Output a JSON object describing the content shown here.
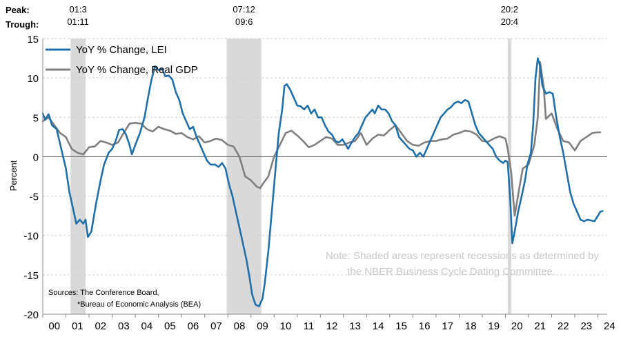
{
  "chart_data": {
    "type": "line",
    "ylabel": "Percent",
    "xlabel": "",
    "ylim": [
      -20,
      15
    ],
    "yticks": [
      15,
      10,
      5,
      0,
      -5,
      -10,
      -15,
      -20
    ],
    "xlim": [
      2000,
      2024.4
    ],
    "xtick_labels": [
      "00",
      "01",
      "02",
      "03",
      "04",
      "05",
      "06",
      "07",
      "08",
      "09",
      "10",
      "11",
      "12",
      "13",
      "14",
      "15",
      "16",
      "17",
      "18",
      "19",
      "20",
      "21",
      "22",
      "23",
      "24"
    ],
    "grid": true,
    "legend_placement": "top-left",
    "peak_label": "Peak:",
    "trough_label": "Trough:",
    "recessions": [
      {
        "peak": "01:3",
        "trough": "01:11",
        "start": 2001.2,
        "end": 2001.85
      },
      {
        "peak": "07:12",
        "trough": "09:6",
        "start": 2007.95,
        "end": 2009.45
      },
      {
        "peak": "20:2",
        "trough": "20:4",
        "start": 2020.1,
        "end": 2020.25
      }
    ],
    "series": [
      {
        "name": "YoY % Change, LEI",
        "color": "#1f6fa8",
        "points": [
          [
            2000.0,
            5.5
          ],
          [
            2000.1,
            4.7
          ],
          [
            2000.25,
            5.4
          ],
          [
            2000.4,
            4.0
          ],
          [
            2000.6,
            3.5
          ],
          [
            2000.8,
            1.0
          ],
          [
            2001.0,
            -1.5
          ],
          [
            2001.15,
            -4.5
          ],
          [
            2001.3,
            -6.5
          ],
          [
            2001.45,
            -8.5
          ],
          [
            2001.6,
            -8.0
          ],
          [
            2001.75,
            -8.5
          ],
          [
            2001.85,
            -8.0
          ],
          [
            2001.95,
            -10.2
          ],
          [
            2002.1,
            -9.5
          ],
          [
            2002.3,
            -6.0
          ],
          [
            2002.5,
            -3.0
          ],
          [
            2002.65,
            -1.0
          ],
          [
            2002.85,
            0.5
          ],
          [
            2003.0,
            1.0
          ],
          [
            2003.15,
            2.0
          ],
          [
            2003.3,
            3.4
          ],
          [
            2003.45,
            3.5
          ],
          [
            2003.6,
            2.8
          ],
          [
            2003.75,
            1.5
          ],
          [
            2003.85,
            0.3
          ],
          [
            2004.0,
            1.5
          ],
          [
            2004.2,
            3.0
          ],
          [
            2004.4,
            5.0
          ],
          [
            2004.55,
            7.5
          ],
          [
            2004.7,
            9.8
          ],
          [
            2004.85,
            11.5
          ],
          [
            2005.0,
            11.0
          ],
          [
            2005.15,
            11.2
          ],
          [
            2005.3,
            10.2
          ],
          [
            2005.45,
            10.3
          ],
          [
            2005.6,
            9.8
          ],
          [
            2005.75,
            8.2
          ],
          [
            2005.9,
            7.2
          ],
          [
            2006.05,
            5.5
          ],
          [
            2006.2,
            4.5
          ],
          [
            2006.35,
            3.5
          ],
          [
            2006.5,
            3.8
          ],
          [
            2006.65,
            2.5
          ],
          [
            2006.8,
            1.5
          ],
          [
            2006.95,
            0.5
          ],
          [
            2007.1,
            -0.5
          ],
          [
            2007.25,
            -1.0
          ],
          [
            2007.45,
            -1.0
          ],
          [
            2007.6,
            -1.3
          ],
          [
            2007.75,
            -0.8
          ],
          [
            2007.9,
            -1.5
          ],
          [
            2008.05,
            -3.5
          ],
          [
            2008.2,
            -5.0
          ],
          [
            2008.35,
            -7.0
          ],
          [
            2008.5,
            -9.0
          ],
          [
            2008.65,
            -11.0
          ],
          [
            2008.8,
            -13.0
          ],
          [
            2008.95,
            -15.5
          ],
          [
            2009.05,
            -17.5
          ],
          [
            2009.2,
            -18.8
          ],
          [
            2009.35,
            -19.0
          ],
          [
            2009.5,
            -18.0
          ],
          [
            2009.6,
            -16.0
          ],
          [
            2009.75,
            -12.0
          ],
          [
            2009.9,
            -7.0
          ],
          [
            2010.05,
            -2.0
          ],
          [
            2010.2,
            3.0
          ],
          [
            2010.35,
            6.0
          ],
          [
            2010.45,
            9.0
          ],
          [
            2010.55,
            9.2
          ],
          [
            2010.7,
            8.5
          ],
          [
            2010.85,
            7.5
          ],
          [
            2011.0,
            6.5
          ],
          [
            2011.15,
            6.4
          ],
          [
            2011.3,
            6.0
          ],
          [
            2011.45,
            6.5
          ],
          [
            2011.6,
            5.5
          ],
          [
            2011.75,
            6.0
          ],
          [
            2011.9,
            5.0
          ],
          [
            2012.05,
            5.0
          ],
          [
            2012.2,
            4.0
          ],
          [
            2012.35,
            3.2
          ],
          [
            2012.5,
            2.8
          ],
          [
            2012.65,
            2.0
          ],
          [
            2012.8,
            1.8
          ],
          [
            2012.95,
            2.2
          ],
          [
            2013.1,
            1.5
          ],
          [
            2013.2,
            1.0
          ],
          [
            2013.35,
            1.8
          ],
          [
            2013.5,
            2.5
          ],
          [
            2013.65,
            3.0
          ],
          [
            2013.8,
            4.0
          ],
          [
            2013.95,
            5.0
          ],
          [
            2014.1,
            5.5
          ],
          [
            2014.25,
            6.0
          ],
          [
            2014.35,
            5.5
          ],
          [
            2014.5,
            6.5
          ],
          [
            2014.65,
            6.0
          ],
          [
            2014.8,
            6.0
          ],
          [
            2014.95,
            5.5
          ],
          [
            2015.1,
            4.5
          ],
          [
            2015.25,
            4.0
          ],
          [
            2015.4,
            2.5
          ],
          [
            2015.55,
            2.0
          ],
          [
            2015.7,
            1.5
          ],
          [
            2015.85,
            1.0
          ],
          [
            2016.0,
            0.8
          ],
          [
            2016.15,
            0.0
          ],
          [
            2016.3,
            0.5
          ],
          [
            2016.45,
            0.0
          ],
          [
            2016.6,
            1.0
          ],
          [
            2016.75,
            2.0
          ],
          [
            2016.9,
            3.0
          ],
          [
            2017.05,
            4.0
          ],
          [
            2017.2,
            5.0
          ],
          [
            2017.35,
            5.5
          ],
          [
            2017.5,
            6.0
          ],
          [
            2017.65,
            6.3
          ],
          [
            2017.8,
            6.8
          ],
          [
            2017.95,
            7.0
          ],
          [
            2018.1,
            6.8
          ],
          [
            2018.25,
            7.2
          ],
          [
            2018.4,
            7.0
          ],
          [
            2018.55,
            5.5
          ],
          [
            2018.7,
            4.0
          ],
          [
            2018.85,
            3.0
          ],
          [
            2019.0,
            2.5
          ],
          [
            2019.15,
            2.0
          ],
          [
            2019.3,
            1.5
          ],
          [
            2019.45,
            1.0
          ],
          [
            2019.6,
            0.0
          ],
          [
            2019.75,
            -0.5
          ],
          [
            2019.9,
            -0.8
          ],
          [
            2020.0,
            -0.5
          ],
          [
            2020.1,
            -0.7
          ],
          [
            2020.2,
            -5.0
          ],
          [
            2020.3,
            -11.0
          ],
          [
            2020.4,
            -9.5
          ],
          [
            2020.55,
            -7.0
          ],
          [
            2020.7,
            -5.0
          ],
          [
            2020.85,
            -3.0
          ],
          [
            2020.95,
            -1.0
          ],
          [
            2021.1,
            0.5
          ],
          [
            2021.2,
            4.0
          ],
          [
            2021.3,
            10.0
          ],
          [
            2021.4,
            12.5
          ],
          [
            2021.5,
            11.5
          ],
          [
            2021.6,
            9.0
          ],
          [
            2021.75,
            8.0
          ],
          [
            2021.9,
            8.2
          ],
          [
            2022.05,
            8.0
          ],
          [
            2022.2,
            5.0
          ],
          [
            2022.35,
            2.5
          ],
          [
            2022.5,
            0.5
          ],
          [
            2022.65,
            -2.0
          ],
          [
            2022.8,
            -4.5
          ],
          [
            2022.95,
            -6.0
          ],
          [
            2023.1,
            -7.0
          ],
          [
            2023.25,
            -8.0
          ],
          [
            2023.4,
            -8.2
          ],
          [
            2023.55,
            -8.0
          ],
          [
            2023.7,
            -8.1
          ],
          [
            2023.85,
            -8.2
          ],
          [
            2024.0,
            -7.5
          ],
          [
            2024.1,
            -7.0
          ],
          [
            2024.2,
            -6.9
          ]
        ]
      },
      {
        "name": "YoY % Change, Real GDP",
        "color": "#7f7f7f",
        "points": [
          [
            2000.0,
            4.5
          ],
          [
            2000.25,
            5.0
          ],
          [
            2000.5,
            4.0
          ],
          [
            2000.75,
            3.0
          ],
          [
            2001.0,
            2.5
          ],
          [
            2001.25,
            1.0
          ],
          [
            2001.5,
            0.5
          ],
          [
            2001.75,
            0.3
          ],
          [
            2002.0,
            1.2
          ],
          [
            2002.25,
            1.3
          ],
          [
            2002.5,
            2.0
          ],
          [
            2002.75,
            1.8
          ],
          [
            2003.0,
            1.5
          ],
          [
            2003.25,
            1.8
          ],
          [
            2003.5,
            3.0
          ],
          [
            2003.75,
            4.2
          ],
          [
            2004.0,
            4.3
          ],
          [
            2004.25,
            4.2
          ],
          [
            2004.5,
            3.5
          ],
          [
            2004.75,
            3.2
          ],
          [
            2005.0,
            3.8
          ],
          [
            2005.25,
            3.5
          ],
          [
            2005.5,
            3.3
          ],
          [
            2005.75,
            2.9
          ],
          [
            2006.0,
            3.0
          ],
          [
            2006.25,
            2.5
          ],
          [
            2006.5,
            2.2
          ],
          [
            2006.75,
            2.6
          ],
          [
            2007.0,
            1.8
          ],
          [
            2007.25,
            2.0
          ],
          [
            2007.5,
            2.3
          ],
          [
            2007.75,
            2.1
          ],
          [
            2008.0,
            1.5
          ],
          [
            2008.25,
            1.3
          ],
          [
            2008.5,
            0.0
          ],
          [
            2008.75,
            -2.5
          ],
          [
            2009.0,
            -3.0
          ],
          [
            2009.25,
            -3.8
          ],
          [
            2009.4,
            -4.0
          ],
          [
            2009.5,
            -3.5
          ],
          [
            2009.75,
            -2.5
          ],
          [
            2010.0,
            0.0
          ],
          [
            2010.25,
            1.5
          ],
          [
            2010.5,
            3.0
          ],
          [
            2010.75,
            3.3
          ],
          [
            2011.0,
            2.7
          ],
          [
            2011.25,
            2.0
          ],
          [
            2011.5,
            1.2
          ],
          [
            2011.75,
            1.5
          ],
          [
            2012.0,
            2.0
          ],
          [
            2012.25,
            2.5
          ],
          [
            2012.5,
            2.3
          ],
          [
            2012.75,
            1.5
          ],
          [
            2013.0,
            1.5
          ],
          [
            2013.25,
            1.8
          ],
          [
            2013.5,
            2.0
          ],
          [
            2013.75,
            3.0
          ],
          [
            2014.0,
            1.5
          ],
          [
            2014.25,
            2.3
          ],
          [
            2014.5,
            2.8
          ],
          [
            2014.75,
            2.7
          ],
          [
            2015.0,
            3.4
          ],
          [
            2015.25,
            4.0
          ],
          [
            2015.5,
            3.0
          ],
          [
            2015.75,
            2.0
          ],
          [
            2016.0,
            1.5
          ],
          [
            2016.25,
            1.4
          ],
          [
            2016.5,
            1.8
          ],
          [
            2016.75,
            2.0
          ],
          [
            2017.0,
            2.0
          ],
          [
            2017.25,
            2.2
          ],
          [
            2017.5,
            2.3
          ],
          [
            2017.75,
            2.8
          ],
          [
            2018.0,
            3.0
          ],
          [
            2018.25,
            3.3
          ],
          [
            2018.5,
            3.2
          ],
          [
            2018.75,
            2.8
          ],
          [
            2019.0,
            2.0
          ],
          [
            2019.25,
            1.9
          ],
          [
            2019.5,
            2.3
          ],
          [
            2019.75,
            2.6
          ],
          [
            2020.0,
            2.3
          ],
          [
            2020.1,
            1.0
          ],
          [
            2020.25,
            -2.0
          ],
          [
            2020.4,
            -7.5
          ],
          [
            2020.6,
            -4.0
          ],
          [
            2020.75,
            -1.5
          ],
          [
            2021.0,
            -1.0
          ],
          [
            2021.25,
            1.5
          ],
          [
            2021.4,
            5.0
          ],
          [
            2021.5,
            12.0
          ],
          [
            2021.65,
            9.0
          ],
          [
            2021.75,
            4.8
          ],
          [
            2022.0,
            5.5
          ],
          [
            2022.25,
            3.5
          ],
          [
            2022.5,
            2.0
          ],
          [
            2022.75,
            1.8
          ],
          [
            2023.0,
            0.8
          ],
          [
            2023.25,
            2.0
          ],
          [
            2023.5,
            2.5
          ],
          [
            2023.75,
            3.0
          ],
          [
            2024.0,
            3.1
          ],
          [
            2024.1,
            3.1
          ]
        ]
      }
    ],
    "note": "Note: Shaded areas represent recessions as determined by the NBER Business Cycle Dating Committee.",
    "note_lines": [
      "Note: Shaded areas represent recessions as determined by",
      "the NBER Business Cycle Dating Committee."
    ],
    "sources": [
      "Sources: The Conference Board,",
      "*Bureau of Economic Analysis (BEA)"
    ]
  }
}
